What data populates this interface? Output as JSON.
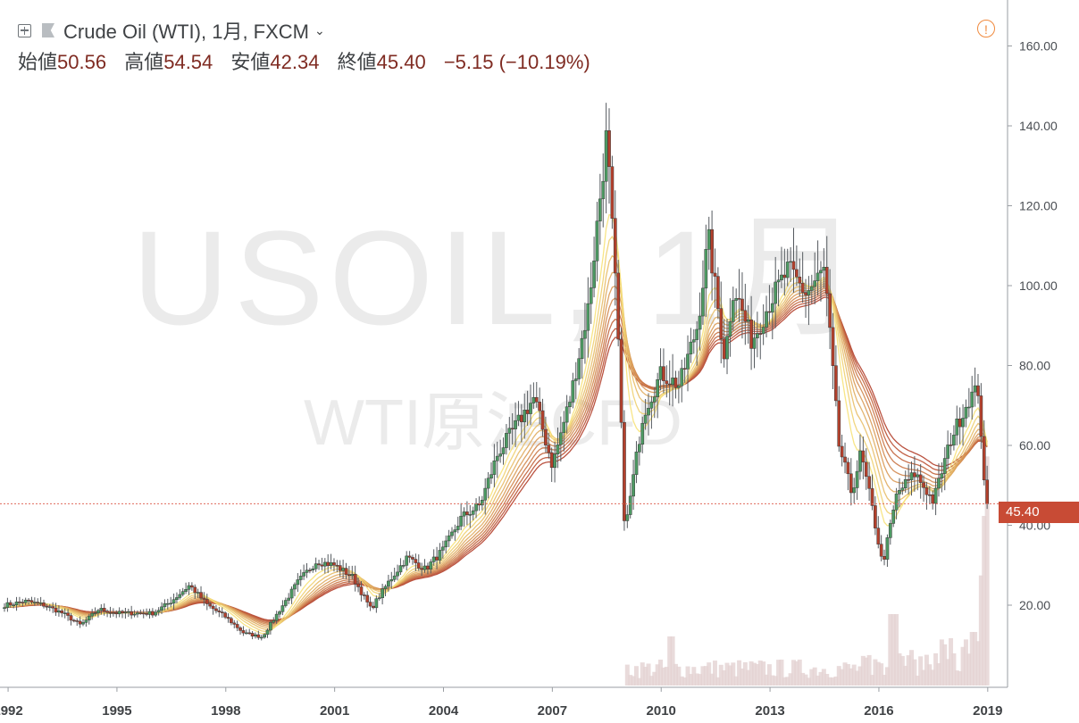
{
  "header": {
    "title": "Crude Oil (WTI), 1月, FXCM",
    "open_label": "始値",
    "open": "50.56",
    "high_label": "高値",
    "high": "54.54",
    "low_label": "安値",
    "low": "42.34",
    "close_label": "終値",
    "close": "45.40",
    "change": "−5.15 (−10.19%)"
  },
  "watermark": {
    "symbol": "USOIL, 1月",
    "description": "WTI原油CFD"
  },
  "current_price_label": "45.40",
  "colors": {
    "up": "#4d9a63",
    "down": "#b3402c",
    "price_line": "#e06a5c",
    "price_tag": "#c84b35",
    "ma_fast": "#f7e27a",
    "ma_slow": "#b3402c",
    "volume": "#e3d2d2"
  },
  "chart_data": {
    "type": "candlestick",
    "symbol": "USOIL",
    "interval": "1M",
    "y_axis_ticks": [
      "20.00",
      "40.00",
      "60.00",
      "80.00",
      "100.00",
      "120.00",
      "140.00",
      "160.00"
    ],
    "x_axis_ticks": [
      "1992",
      "1995",
      "1998",
      "2001",
      "2004",
      "2007",
      "2010",
      "2013",
      "2016",
      "2019"
    ],
    "ylim": [
      0,
      170
    ],
    "xlim": [
      1991.9,
      2019.3
    ],
    "current_price": 45.4,
    "price_path": [
      [
        1991.9,
        20
      ],
      [
        1992.5,
        21
      ],
      [
        1993.0,
        20
      ],
      [
        1993.5,
        18
      ],
      [
        1994.0,
        15
      ],
      [
        1994.5,
        19
      ],
      [
        1995.0,
        18
      ],
      [
        1995.5,
        18
      ],
      [
        1996.0,
        18
      ],
      [
        1996.5,
        21
      ],
      [
        1997.0,
        25
      ],
      [
        1997.5,
        20
      ],
      [
        1998.0,
        17
      ],
      [
        1998.5,
        13
      ],
      [
        1999.0,
        12
      ],
      [
        1999.5,
        19
      ],
      [
        2000.0,
        26
      ],
      [
        2000.5,
        31
      ],
      [
        2001.0,
        30
      ],
      [
        2001.5,
        27
      ],
      [
        2002.0,
        19
      ],
      [
        2002.5,
        26
      ],
      [
        2003.0,
        32
      ],
      [
        2003.5,
        29
      ],
      [
        2004.0,
        34
      ],
      [
        2004.5,
        42
      ],
      [
        2005.0,
        45
      ],
      [
        2005.5,
        58
      ],
      [
        2006.0,
        65
      ],
      [
        2006.5,
        72
      ],
      [
        2007.0,
        55
      ],
      [
        2007.5,
        72
      ],
      [
        2008.0,
        95
      ],
      [
        2008.5,
        138
      ],
      [
        2008.8,
        90
      ],
      [
        2009.0,
        38
      ],
      [
        2009.5,
        68
      ],
      [
        2010.0,
        78
      ],
      [
        2010.5,
        75
      ],
      [
        2011.0,
        90
      ],
      [
        2011.3,
        112
      ],
      [
        2011.75,
        82
      ],
      [
        2012.0,
        100
      ],
      [
        2012.5,
        86
      ],
      [
        2013.0,
        96
      ],
      [
        2013.5,
        104
      ],
      [
        2014.0,
        98
      ],
      [
        2014.5,
        104
      ],
      [
        2014.9,
        60
      ],
      [
        2015.25,
        48
      ],
      [
        2015.5,
        58
      ],
      [
        2015.8,
        45
      ],
      [
        2016.1,
        30
      ],
      [
        2016.5,
        48
      ],
      [
        2017.0,
        53
      ],
      [
        2017.5,
        46
      ],
      [
        2018.0,
        62
      ],
      [
        2018.5,
        72
      ],
      [
        2018.75,
        74
      ],
      [
        2018.9,
        50
      ],
      [
        2019.0,
        45.4
      ]
    ],
    "moving_averages": "10 exponential moving averages shown, yellow (fastest) to dark red (slowest)",
    "volume": "shown as light bars at bottom, visible from 2009 onward, rising sharply at the end of 2018"
  }
}
